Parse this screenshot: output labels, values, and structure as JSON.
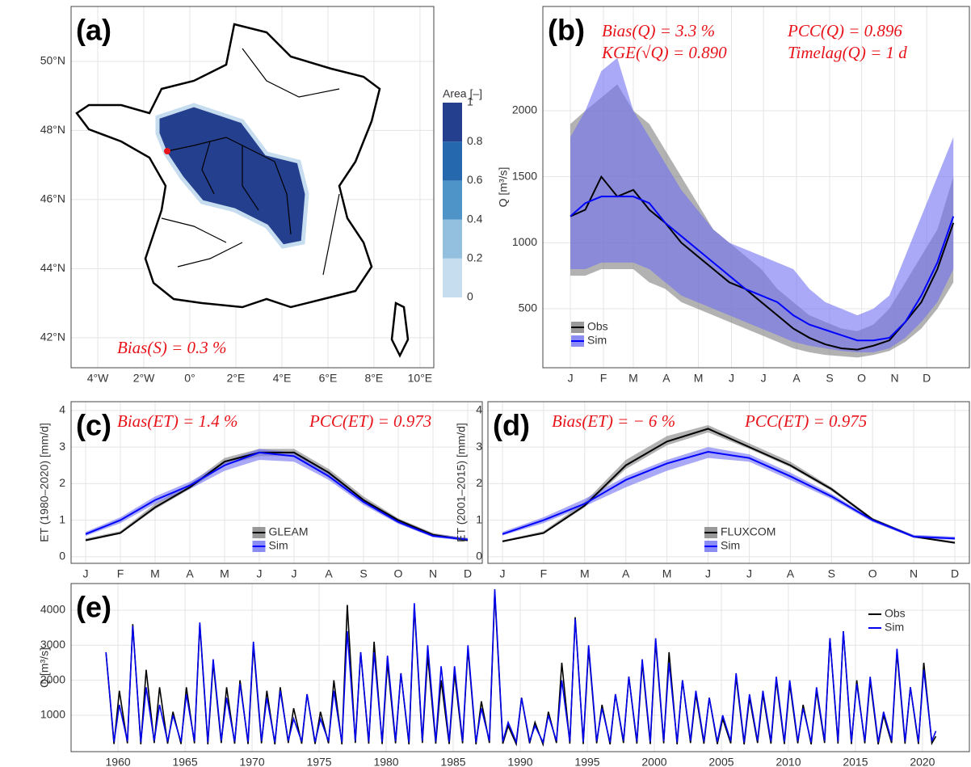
{
  "chart_data": [
    {
      "type": "map",
      "panel": "(a)",
      "xlim": [
        -5.16,
        10.6
      ],
      "ylim": [
        41.13,
        51.59
      ],
      "xticks": [
        {
          "value": -4,
          "label": "4°W"
        },
        {
          "value": -2,
          "label": "2°W"
        },
        {
          "value": 0,
          "label": "0°"
        },
        {
          "value": 2,
          "label": "2°E"
        },
        {
          "value": 4,
          "label": "4°E"
        },
        {
          "value": 6,
          "label": "6°E"
        },
        {
          "value": 8,
          "label": "8°E"
        },
        {
          "value": 10,
          "label": "10°E"
        }
      ],
      "yticks": [
        {
          "value": 42,
          "label": "42°N"
        },
        {
          "value": 44,
          "label": "44°N"
        },
        {
          "value": 46,
          "label": "46°N"
        },
        {
          "value": 48,
          "label": "48°N"
        },
        {
          "value": 50,
          "label": "50°N"
        }
      ],
      "grid": true,
      "annotations": [
        "Bias(S) = 0.3 %"
      ],
      "legend_title": "Area [–]",
      "legend_ticks": [
        0,
        0.2,
        0.4,
        0.6,
        0.8,
        1
      ],
      "legend_colors": [
        "#c6dcef",
        "#94c0e0",
        "#4f94c8",
        "#2568ad",
        "#233f8e"
      ]
    },
    {
      "type": "line",
      "panel": "(b)",
      "y_label": "Q [m³/s]",
      "x": [
        1,
        15,
        30,
        45,
        60,
        75,
        90,
        105,
        120,
        135,
        150,
        165,
        180,
        195,
        210,
        225,
        240,
        255,
        270,
        285,
        300,
        315,
        330,
        345,
        360
      ],
      "xlim": [
        -24.8,
        375
      ],
      "xticks": [
        {
          "value": 1,
          "label": "J"
        },
        {
          "value": 32,
          "label": "F"
        },
        {
          "value": 60,
          "label": "M"
        },
        {
          "value": 91,
          "label": "A"
        },
        {
          "value": 121,
          "label": "M"
        },
        {
          "value": 152,
          "label": "J"
        },
        {
          "value": 182,
          "label": "J"
        },
        {
          "value": 213,
          "label": "A"
        },
        {
          "value": 244,
          "label": "S"
        },
        {
          "value": 274,
          "label": "O"
        },
        {
          "value": 305,
          "label": "N"
        },
        {
          "value": 335,
          "label": "D"
        }
      ],
      "ylim": [
        53,
        2790
      ],
      "yticks": [
        500,
        1000,
        1500,
        2000
      ],
      "grid": true,
      "legend": "bottom left",
      "annotations": [
        "Bias(Q) = 3.3 %",
        "PCC(Q) = 0.896",
        "KGE(√Q) = 0.890",
        "Timelag(Q) = 1 d"
      ],
      "series": [
        {
          "name": "Obs",
          "color": "#000000",
          "band_color": "#7f7f7f",
          "values": [
            1200,
            1250,
            1500,
            1350,
            1400,
            1250,
            1150,
            1000,
            900,
            800,
            700,
            650,
            550,
            450,
            350,
            280,
            230,
            200,
            190,
            220,
            260,
            400,
            550,
            800,
            1150
          ],
          "band_low": [
            750,
            750,
            800,
            800,
            800,
            700,
            650,
            550,
            500,
            450,
            400,
            350,
            300,
            250,
            200,
            170,
            150,
            140,
            130,
            150,
            180,
            250,
            350,
            500,
            700
          ],
          "band_high": [
            1900,
            2000,
            2100,
            2200,
            2000,
            1900,
            1700,
            1500,
            1300,
            1100,
            1000,
            900,
            800,
            650,
            550,
            450,
            400,
            350,
            330,
            380,
            500,
            700,
            900,
            1100,
            1500
          ]
        },
        {
          "name": "Sim",
          "color": "#0000ff",
          "band_color": "#6f6ff2",
          "values": [
            1200,
            1300,
            1350,
            1350,
            1350,
            1300,
            1150,
            1050,
            950,
            850,
            750,
            650,
            600,
            550,
            450,
            380,
            340,
            300,
            260,
            260,
            280,
            400,
            600,
            850,
            1200
          ],
          "band_low": [
            800,
            800,
            850,
            850,
            850,
            800,
            700,
            600,
            550,
            500,
            450,
            400,
            350,
            300,
            250,
            220,
            200,
            180,
            170,
            170,
            200,
            280,
            400,
            550,
            800
          ],
          "band_high": [
            1800,
            2000,
            2300,
            2400,
            2000,
            1800,
            1600,
            1400,
            1250,
            1100,
            1000,
            950,
            900,
            850,
            800,
            650,
            550,
            500,
            450,
            500,
            600,
            900,
            1200,
            1500,
            1800
          ]
        }
      ]
    },
    {
      "type": "line",
      "panel": "(c)",
      "y_label": "ET (1980–2020) [mm/d]",
      "categories": [
        "J",
        "F",
        "M",
        "A",
        "M",
        "J",
        "J",
        "A",
        "S",
        "O",
        "N",
        "D"
      ],
      "ylim": [
        -0.18,
        4.24
      ],
      "yticks": [
        0,
        1,
        2,
        3,
        4
      ],
      "grid": true,
      "legend": "bottom center",
      "annotations": [
        "Bias(ET) = 1.4 %",
        "PCC(ET) = 0.973"
      ],
      "series": [
        {
          "name": "GLEAM",
          "color": "#000000",
          "band_color": "#7f7f7f",
          "values": [
            0.45,
            0.65,
            1.35,
            1.9,
            2.6,
            2.85,
            2.85,
            2.3,
            1.55,
            1.0,
            0.6,
            0.45
          ],
          "band_low": [
            0.42,
            0.62,
            1.3,
            1.85,
            2.5,
            2.75,
            2.75,
            2.2,
            1.5,
            0.97,
            0.57,
            0.42
          ],
          "band_high": [
            0.5,
            0.7,
            1.45,
            2.0,
            2.7,
            2.95,
            2.95,
            2.4,
            1.65,
            1.05,
            0.65,
            0.5
          ]
        },
        {
          "name": "Sim",
          "color": "#0000ff",
          "band_color": "#6f6ff2",
          "values": [
            0.62,
            1.0,
            1.55,
            1.95,
            2.5,
            2.85,
            2.75,
            2.2,
            1.5,
            0.95,
            0.57,
            0.47
          ],
          "band_low": [
            0.57,
            0.92,
            1.45,
            1.85,
            2.35,
            2.65,
            2.6,
            2.1,
            1.42,
            0.9,
            0.53,
            0.43
          ],
          "band_high": [
            0.68,
            1.08,
            1.65,
            2.05,
            2.6,
            2.95,
            2.85,
            2.3,
            1.58,
            1.0,
            0.62,
            0.52
          ]
        }
      ]
    },
    {
      "type": "line",
      "panel": "(d)",
      "y_label": "ET (2001–2015) [mm/d]",
      "categories": [
        "J",
        "F",
        "M",
        "A",
        "M",
        "J",
        "J",
        "A",
        "S",
        "O",
        "N",
        "D"
      ],
      "ylim": [
        -0.18,
        4.24
      ],
      "yticks": [
        0,
        1,
        2,
        3,
        4
      ],
      "grid": true,
      "legend": "bottom center",
      "annotations": [
        "Bias(ET) = − 6 %",
        "PCC(ET) = 0.975"
      ],
      "series": [
        {
          "name": "FLUXCOM",
          "color": "#000000",
          "band_color": "#7f7f7f",
          "values": [
            0.42,
            0.65,
            1.4,
            2.5,
            3.15,
            3.5,
            3.0,
            2.5,
            1.85,
            1.02,
            0.55,
            0.38
          ],
          "band_low": [
            0.4,
            0.62,
            1.35,
            2.4,
            3.05,
            3.4,
            2.95,
            2.45,
            1.8,
            1.0,
            0.53,
            0.36
          ],
          "band_high": [
            0.45,
            0.7,
            1.5,
            2.65,
            3.3,
            3.6,
            3.1,
            2.6,
            1.9,
            1.06,
            0.58,
            0.42
          ]
        },
        {
          "name": "Sim",
          "color": "#0000ff",
          "band_color": "#6f6ff2",
          "values": [
            0.62,
            1.0,
            1.45,
            2.1,
            2.55,
            2.87,
            2.7,
            2.2,
            1.65,
            1.0,
            0.55,
            0.5
          ],
          "band_low": [
            0.58,
            0.92,
            1.38,
            1.9,
            2.35,
            2.7,
            2.6,
            2.1,
            1.58,
            0.95,
            0.52,
            0.46
          ],
          "band_high": [
            0.68,
            1.08,
            1.58,
            2.2,
            2.65,
            3.0,
            2.8,
            2.3,
            1.72,
            1.05,
            0.6,
            0.55
          ]
        }
      ]
    },
    {
      "type": "line",
      "panel": "(e)",
      "y_label": "Q [m³/s]",
      "x": [
        1959.1,
        1959.7,
        1960.1,
        1960.7,
        1961.1,
        1961.7,
        1962.1,
        1962.7,
        1963.1,
        1963.7,
        1964.1,
        1964.7,
        1965.1,
        1965.7,
        1966.1,
        1966.7,
        1967.1,
        1967.7,
        1968.1,
        1968.7,
        1969.1,
        1969.7,
        1970.1,
        1970.7,
        1971.1,
        1971.7,
        1972.1,
        1972.7,
        1973.1,
        1973.7,
        1974.1,
        1974.7,
        1975.1,
        1975.7,
        1976.1,
        1976.7,
        1977.1,
        1977.7,
        1978.1,
        1978.7,
        1979.1,
        1979.7,
        1980.1,
        1980.7,
        1981.1,
        1981.7,
        1982.1,
        1982.7,
        1983.1,
        1983.7,
        1984.1,
        1984.7,
        1985.1,
        1985.7,
        1986.1,
        1986.7,
        1987.1,
        1987.7,
        1988.1,
        1988.7,
        1989.1,
        1989.7,
        1990.1,
        1990.7,
        1991.1,
        1991.7,
        1992.1,
        1992.7,
        1993.1,
        1993.7,
        1994.1,
        1994.7,
        1995.1,
        1995.7,
        1996.1,
        1996.7,
        1997.1,
        1997.7,
        1998.1,
        1998.7,
        1999.1,
        1999.7,
        2000.1,
        2000.7,
        2001.1,
        2001.7,
        2002.1,
        2002.7,
        2003.1,
        2003.7,
        2004.1,
        2004.7,
        2005.1,
        2005.7,
        2006.1,
        2006.7,
        2007.1,
        2007.7,
        2008.1,
        2008.7,
        2009.1,
        2009.7,
        2010.1,
        2010.7,
        2011.1,
        2011.7,
        2012.1,
        2012.7,
        2013.1,
        2013.7,
        2014.1,
        2014.7,
        2015.1,
        2015.7,
        2016.1,
        2016.7,
        2017.1,
        2017.7,
        2018.1,
        2018.7,
        2019.1,
        2019.7,
        2020.1,
        2020.7,
        2021.0
      ],
      "xlim": [
        1956.5,
        2023.5
      ],
      "xticks": [
        1960,
        1965,
        1970,
        1975,
        1980,
        1985,
        1990,
        1995,
        2000,
        2005,
        2010,
        2015,
        2020
      ],
      "ylim": [
        -38,
        4761
      ],
      "yticks": [
        1000,
        2000,
        3000,
        4000
      ],
      "grid": true,
      "legend": "top right",
      "series": [
        {
          "name": "Obs",
          "color": "#000000",
          "values": [
            2800,
            180,
            1700,
            200,
            3600,
            170,
            2300,
            210,
            1800,
            190,
            1100,
            180,
            1800,
            200,
            3600,
            170,
            2500,
            210,
            1800,
            190,
            2000,
            180,
            3000,
            200,
            1700,
            170,
            1800,
            210,
            1200,
            190,
            1600,
            180,
            1100,
            200,
            2000,
            170,
            4150,
            210,
            2800,
            190,
            3100,
            180,
            2500,
            200,
            2200,
            170,
            4100,
            210,
            2700,
            190,
            2000,
            180,
            2200,
            200,
            2900,
            170,
            1400,
            210,
            4500,
            190,
            700,
            180,
            1500,
            200,
            800,
            170,
            1100,
            210,
            2500,
            190,
            3800,
            180,
            2900,
            200,
            1300,
            170,
            1600,
            210,
            2100,
            190,
            2500,
            180,
            3100,
            200,
            2800,
            170,
            2000,
            210,
            1600,
            190,
            1500,
            180,
            900,
            200,
            2100,
            170,
            1500,
            210,
            1600,
            190,
            2000,
            180,
            1900,
            200,
            1300,
            170,
            1700,
            210,
            3200,
            190,
            3400,
            180,
            2000,
            200,
            2000,
            170,
            1000,
            210,
            2800,
            190,
            1800,
            180,
            2500,
            200,
            400
          ]
        },
        {
          "name": "Sim",
          "color": "#0000ee",
          "values": [
            2800,
            240,
            1300,
            260,
            3550,
            230,
            1800,
            270,
            1300,
            250,
            1000,
            240,
            1600,
            260,
            3650,
            230,
            2600,
            270,
            1500,
            250,
            1900,
            240,
            3100,
            260,
            1500,
            230,
            1700,
            270,
            900,
            250,
            1600,
            240,
            900,
            260,
            1700,
            230,
            3400,
            270,
            2800,
            250,
            2800,
            240,
            2700,
            260,
            2200,
            230,
            4200,
            270,
            3000,
            250,
            2400,
            240,
            2400,
            260,
            3000,
            230,
            1200,
            270,
            4600,
            250,
            800,
            240,
            1500,
            260,
            700,
            230,
            1000,
            270,
            2000,
            250,
            3750,
            240,
            3000,
            260,
            1200,
            230,
            1600,
            270,
            2100,
            250,
            2600,
            240,
            3200,
            260,
            2500,
            230,
            2000,
            270,
            1700,
            250,
            1500,
            240,
            1000,
            260,
            2200,
            230,
            1600,
            270,
            1700,
            250,
            2100,
            240,
            2000,
            260,
            1200,
            230,
            1800,
            270,
            3200,
            250,
            3400,
            240,
            1900,
            260,
            2100,
            230,
            1100,
            270,
            2900,
            250,
            1800,
            240,
            2300,
            260,
            550
          ]
        }
      ]
    }
  ]
}
